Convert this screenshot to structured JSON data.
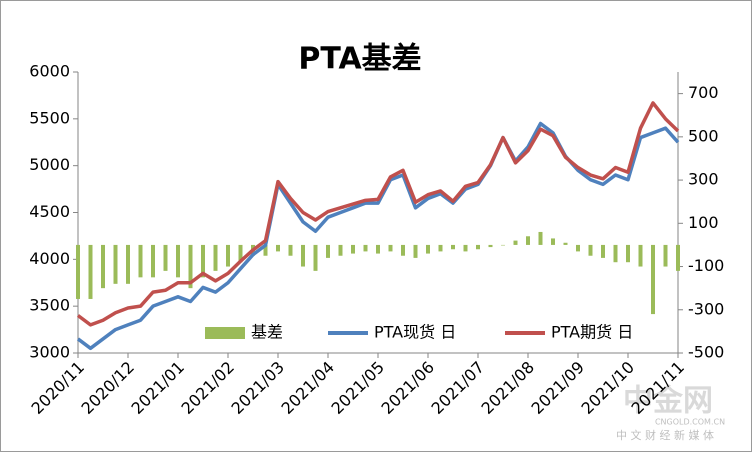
{
  "chart_data": {
    "type": "bar-line",
    "title": "PTA基差",
    "categories": [
      "2020/11",
      null,
      null,
      null,
      "2020/12",
      null,
      null,
      null,
      "2021/01",
      null,
      null,
      null,
      "2021/02",
      null,
      null,
      null,
      "2021/03",
      null,
      null,
      null,
      "2021/04",
      null,
      null,
      null,
      "2021/05",
      null,
      null,
      null,
      "2021/06",
      null,
      null,
      null,
      "2021/07",
      null,
      null,
      null,
      "2021/08",
      null,
      null,
      null,
      "2021/09",
      null,
      null,
      null,
      "2021/10",
      null,
      null,
      null,
      "2021/11"
    ],
    "series": [
      {
        "name": "基差",
        "type": "bar",
        "axis": "y2",
        "color": "#9bbb59",
        "values": [
          -250,
          -250,
          -200,
          -180,
          -180,
          -150,
          -150,
          -120,
          -150,
          -200,
          -150,
          -120,
          -100,
          -80,
          -50,
          -50,
          -30,
          -50,
          -100,
          -120,
          -60,
          -50,
          -40,
          -30,
          -40,
          -30,
          -50,
          -60,
          -40,
          -30,
          -20,
          -30,
          -20,
          -10,
          0,
          20,
          40,
          60,
          30,
          10,
          -30,
          -50,
          -60,
          -80,
          -80,
          -100,
          -320,
          -100,
          -120
        ]
      },
      {
        "name": "PTA现货 日",
        "type": "line",
        "color": "#4f81bd",
        "values": [
          3150,
          3050,
          3150,
          3250,
          3300,
          3350,
          3500,
          3550,
          3600,
          3550,
          3700,
          3650,
          3750,
          3900,
          4050,
          4150,
          4800,
          4600,
          4400,
          4300,
          4450,
          4500,
          4550,
          4600,
          4600,
          4850,
          4900,
          4550,
          4650,
          4700,
          4600,
          4750,
          4800,
          5000,
          5300,
          5050,
          5200,
          5450,
          5350,
          5100,
          4950,
          4850,
          4800,
          4900,
          4850,
          5300,
          5350,
          5400,
          5250
        ]
      },
      {
        "name": "PTA期货 日",
        "type": "line",
        "color": "#c0504d",
        "values": [
          3400,
          3300,
          3350,
          3430,
          3480,
          3500,
          3650,
          3670,
          3750,
          3750,
          3850,
          3770,
          3850,
          3980,
          4100,
          4200,
          4830,
          4650,
          4500,
          4420,
          4510,
          4550,
          4590,
          4630,
          4640,
          4880,
          4950,
          4610,
          4690,
          4730,
          4620,
          4780,
          4820,
          5010,
          5300,
          5030,
          5160,
          5390,
          5320,
          5090,
          4980,
          4900,
          4860,
          4980,
          4930,
          5400,
          5670,
          5500,
          5370
        ]
      }
    ],
    "ylim": [
      3000,
      6000
    ],
    "yticks": [
      3000,
      3500,
      4000,
      4500,
      5000,
      5500,
      6000
    ],
    "y2lim": [
      -500,
      800
    ],
    "y2ticks": [
      -500,
      -300,
      -100,
      100,
      300,
      500,
      700
    ],
    "grid": false,
    "legend": "bottom"
  },
  "watermark": {
    "logo": "中金网",
    "site": "CNGOLD.COM.CN",
    "slogan": "中 文 财 经 新 媒 体"
  }
}
